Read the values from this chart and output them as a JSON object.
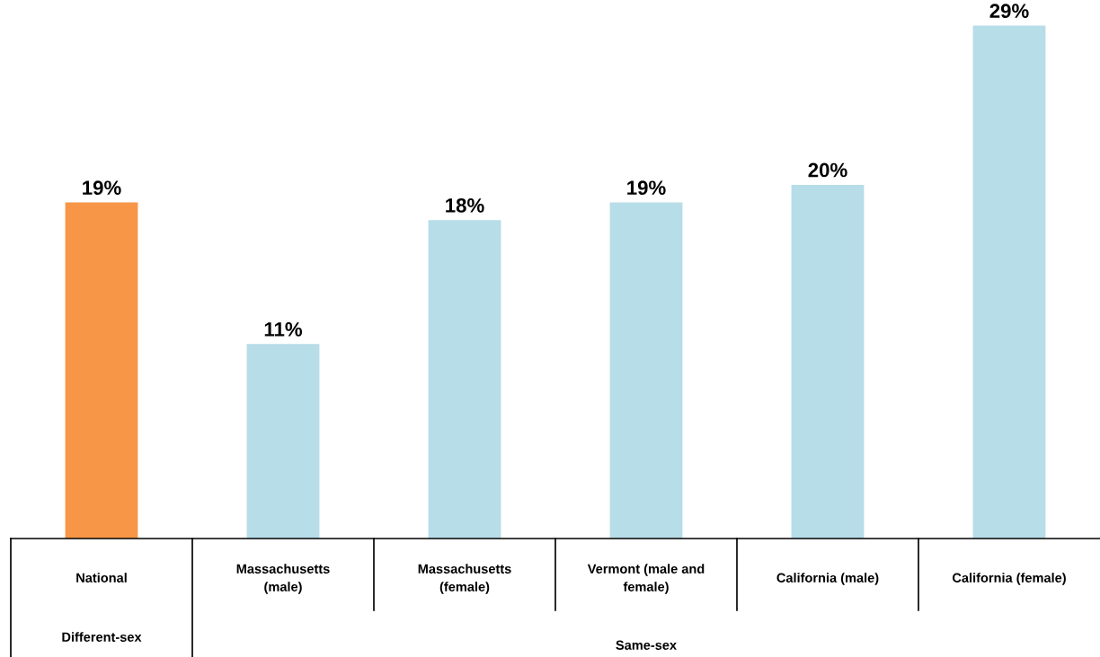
{
  "chart_data": {
    "type": "bar",
    "categories": [
      "National",
      "Massachusetts\n(male)",
      "Massachusetts\n(female)",
      "Vermont (male and\nfemale)",
      "California (male)",
      "California (female)"
    ],
    "values": [
      19,
      11,
      18,
      19,
      20,
      29
    ],
    "colors": [
      "#f79646",
      "#b7dde8",
      "#b7dde8",
      "#b7dde8",
      "#b7dde8",
      "#b7dde8"
    ],
    "value_labels": [
      "19%",
      "11%",
      "18%",
      "19%",
      "20%",
      "29%"
    ],
    "tick_labels": "x",
    "legend": false,
    "annotations": [
      "Different-sex",
      "Same-sex"
    ]
  }
}
